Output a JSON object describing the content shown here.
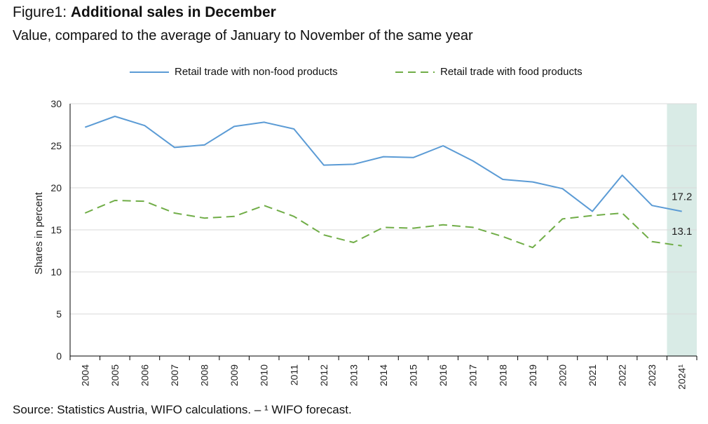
{
  "figure": {
    "label": "Figure1: ",
    "title": "Additional sales in December",
    "subtitle": "Value, compared to the average of January to November of the same year",
    "source": "Source: Statistics Austria, WIFO calculations. – ¹ WIFO forecast."
  },
  "chart_data": {
    "type": "line",
    "title": "Additional sales in December",
    "subtitle": "Value, compared to the average of January to November of the same year",
    "xlabel": "",
    "ylabel": "Shares in percent",
    "ylim": [
      0,
      30
    ],
    "yticks": [
      "0",
      "5",
      "10",
      "15",
      "20",
      "25",
      "30"
    ],
    "categories": [
      "2004",
      "2005",
      "2006",
      "2007",
      "2008",
      "2009",
      "2010",
      "2011",
      "2012",
      "2013",
      "2014",
      "2015",
      "2016",
      "2017",
      "2018",
      "2019",
      "2020",
      "2021",
      "2022",
      "2023",
      "2024¹"
    ],
    "grid": true,
    "legend_position": "top",
    "forecast_category": "2024¹",
    "forecast_color": "#d9ebe6",
    "series": [
      {
        "name": "Retail trade with non-food products",
        "color": "#5b9bd5",
        "style": "solid",
        "values": [
          27.2,
          28.5,
          27.4,
          24.8,
          25.1,
          27.3,
          27.8,
          27.0,
          22.7,
          22.8,
          23.7,
          23.6,
          25.0,
          23.2,
          21.0,
          20.7,
          19.9,
          17.2,
          21.5,
          17.9,
          17.2
        ],
        "end_label": "17.2"
      },
      {
        "name": "Retail trade with food products",
        "color": "#70ad47",
        "style": "dashed",
        "values": [
          17.0,
          18.5,
          18.4,
          17.0,
          16.4,
          16.6,
          17.9,
          16.6,
          14.4,
          13.5,
          15.3,
          15.2,
          15.6,
          15.3,
          14.2,
          12.9,
          16.3,
          16.7,
          17.0,
          13.6,
          13.1
        ],
        "end_label": "13.1"
      }
    ]
  }
}
